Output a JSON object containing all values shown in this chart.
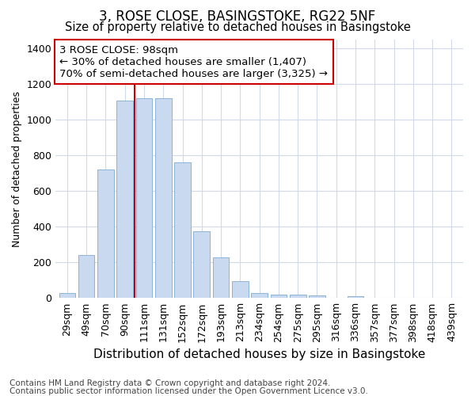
{
  "title": "3, ROSE CLOSE, BASINGSTOKE, RG22 5NF",
  "subtitle": "Size of property relative to detached houses in Basingstoke",
  "xlabel": "Distribution of detached houses by size in Basingstoke",
  "ylabel": "Number of detached properties",
  "footnote1": "Contains HM Land Registry data © Crown copyright and database right 2024.",
  "footnote2": "Contains public sector information licensed under the Open Government Licence v3.0.",
  "categories": [
    "29sqm",
    "49sqm",
    "70sqm",
    "90sqm",
    "111sqm",
    "131sqm",
    "152sqm",
    "172sqm",
    "193sqm",
    "213sqm",
    "234sqm",
    "254sqm",
    "275sqm",
    "295sqm",
    "316sqm",
    "336sqm",
    "357sqm",
    "377sqm",
    "398sqm",
    "418sqm",
    "439sqm"
  ],
  "values": [
    30,
    240,
    720,
    1110,
    1120,
    1120,
    760,
    375,
    230,
    95,
    30,
    20,
    20,
    13,
    0,
    12,
    0,
    0,
    0,
    0,
    0
  ],
  "bar_color": "#c9d9f0",
  "bar_edge_color": "#8ab4d8",
  "vline_x": 3.5,
  "vline_color": "#cc0000",
  "annotation_text": "3 ROSE CLOSE: 98sqm\n← 30% of detached houses are smaller (1,407)\n70% of semi-detached houses are larger (3,325) →",
  "annotation_box_color": "#ffffff",
  "annotation_box_edge": "#cc0000",
  "ylim": [
    0,
    1450
  ],
  "background_color": "#ffffff",
  "plot_background": "#ffffff",
  "grid_color": "#d0daea",
  "title_fontsize": 12,
  "subtitle_fontsize": 10.5,
  "xlabel_fontsize": 11,
  "ylabel_fontsize": 9,
  "tick_fontsize": 9,
  "annotation_fontsize": 9.5,
  "footnote_fontsize": 7.5
}
